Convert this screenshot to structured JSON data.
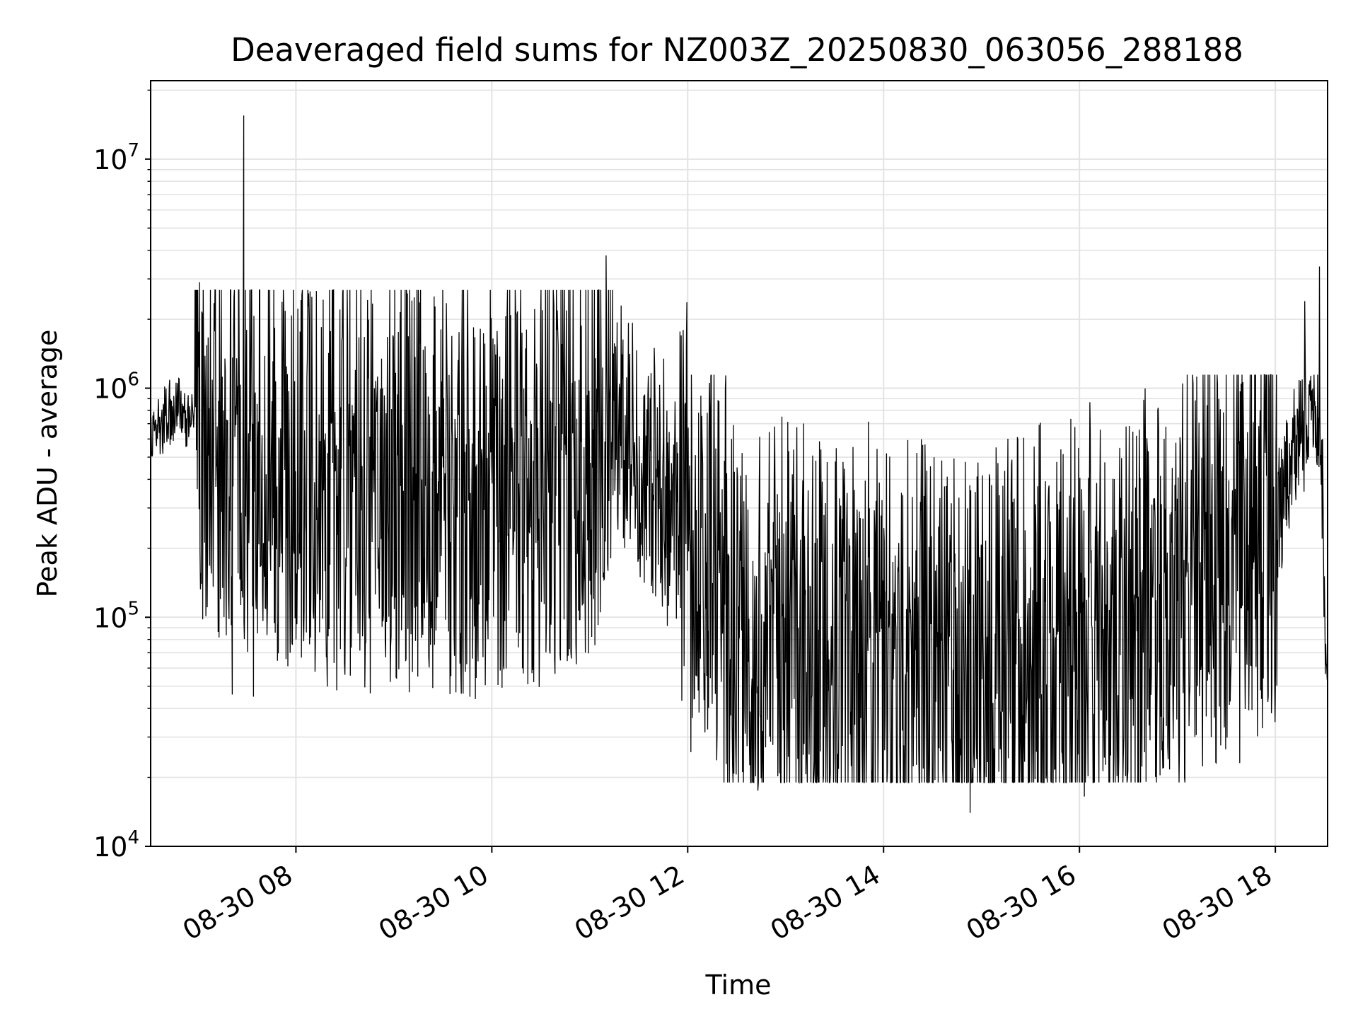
{
  "chart_data": {
    "type": "line",
    "title": "Deaveraged field sums for NZ003Z_20250830_063056_288188",
    "xlabel": "Time",
    "ylabel": "Peak ADU - average",
    "yscale": "log",
    "ylim": [
      10000,
      22000000
    ],
    "xlim": [
      "2025-08-30 06:31",
      "2025-08-30 18:32"
    ],
    "grid": true,
    "legend": "none",
    "xticks": [
      {
        "t": "2025-08-30 08:00",
        "label": "08-30 08"
      },
      {
        "t": "2025-08-30 10:00",
        "label": "08-30 10"
      },
      {
        "t": "2025-08-30 12:00",
        "label": "08-30 12"
      },
      {
        "t": "2025-08-30 14:00",
        "label": "08-30 14"
      },
      {
        "t": "2025-08-30 16:00",
        "label": "08-30 16"
      },
      {
        "t": "2025-08-30 18:00",
        "label": "08-30 18"
      }
    ],
    "yticks": [
      {
        "v": 10000,
        "base": "10",
        "exp": "4"
      },
      {
        "v": 100000,
        "base": "10",
        "exp": "5"
      },
      {
        "v": 1000000,
        "base": "10",
        "exp": "6"
      },
      {
        "v": 10000000,
        "base": "10",
        "exp": "7"
      }
    ],
    "series_color": "#000000",
    "envelope_points": [
      {
        "t": "2025-08-30 06:31",
        "y": 650000
      },
      {
        "t": "2025-08-30 06:45",
        "y": 800000
      },
      {
        "t": "2025-08-30 07:00",
        "y": 700000
      },
      {
        "t": "2025-08-30 07:30",
        "y": 600000
      },
      {
        "t": "2025-08-30 08:00",
        "y": 500000
      },
      {
        "t": "2025-08-30 08:30",
        "y": 480000
      },
      {
        "t": "2025-08-30 09:00",
        "y": 450000
      },
      {
        "t": "2025-08-30 09:30",
        "y": 420000
      },
      {
        "t": "2025-08-30 10:00",
        "y": 380000
      },
      {
        "t": "2025-08-30 10:30",
        "y": 450000
      },
      {
        "t": "2025-08-30 11:00",
        "y": 550000
      },
      {
        "t": "2025-08-30 11:10",
        "y": 1000000
      },
      {
        "t": "2025-08-30 11:20",
        "y": 700000
      },
      {
        "t": "2025-08-30 11:40",
        "y": 400000
      },
      {
        "t": "2025-08-30 12:00",
        "y": 250000
      },
      {
        "t": "2025-08-30 12:30",
        "y": 120000
      },
      {
        "t": "2025-08-30 13:00",
        "y": 90000
      },
      {
        "t": "2025-08-30 14:00",
        "y": 75000
      },
      {
        "t": "2025-08-30 15:00",
        "y": 78000
      },
      {
        "t": "2025-08-30 16:00",
        "y": 90000
      },
      {
        "t": "2025-08-30 17:00",
        "y": 140000
      },
      {
        "t": "2025-08-30 17:30",
        "y": 200000
      },
      {
        "t": "2025-08-30 18:00",
        "y": 250000
      },
      {
        "t": "2025-08-30 18:15",
        "y": 700000
      },
      {
        "t": "2025-08-30 18:25",
        "y": 900000
      },
      {
        "t": "2025-08-30 18:29",
        "y": 300000
      },
      {
        "t": "2025-08-30 18:32",
        "y": 45000
      }
    ],
    "spikes": [
      {
        "t": "2025-08-30 07:28",
        "y": 15500000
      },
      {
        "t": "2025-08-30 11:10",
        "y": 3800000
      },
      {
        "t": "2025-08-30 18:27",
        "y": 3400000
      },
      {
        "t": "2025-08-30 07:01",
        "y": 2900000
      },
      {
        "t": "2025-08-30 18:18",
        "y": 2400000
      },
      {
        "t": "2025-08-30 10:38",
        "y": 2300000
      },
      {
        "t": "2025-08-30 10:15",
        "y": 2100000
      },
      {
        "t": "2025-08-30 11:56",
        "y": 1700000
      },
      {
        "t": "2025-08-30 14:53",
        "y": 14000
      },
      {
        "t": "2025-08-30 16:03",
        "y": 16500
      },
      {
        "t": "2025-08-30 12:43",
        "y": 17500
      },
      {
        "t": "2025-08-30 07:34",
        "y": 45000
      },
      {
        "t": "2025-08-30 09:38",
        "y": 47000
      },
      {
        "t": "2025-08-30 08:25",
        "y": 48000
      },
      {
        "t": "2025-08-30 07:21",
        "y": 46000
      }
    ]
  }
}
